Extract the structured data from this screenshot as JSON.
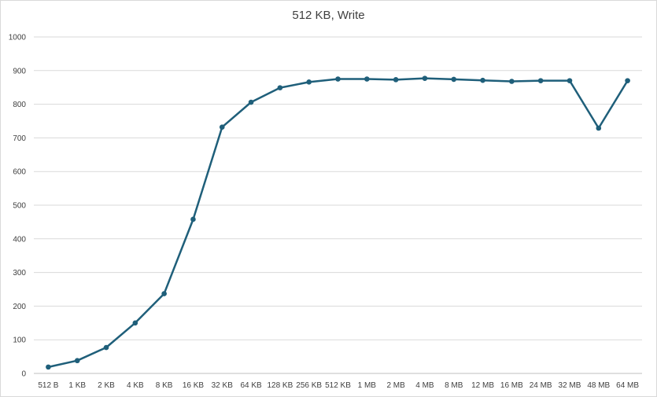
{
  "chart_data": {
    "type": "line",
    "title": "512 KB, Write",
    "xlabel": "",
    "ylabel": "",
    "categories": [
      "512 B",
      "1 KB",
      "2 KB",
      "4 KB",
      "8 KB",
      "16 KB",
      "32 KB",
      "64 KB",
      "128 KB",
      "256 KB",
      "512 KB",
      "1 MB",
      "2 MB",
      "4 MB",
      "8 MB",
      "12 MB",
      "16 MB",
      "24 MB",
      "32 MB",
      "48 MB",
      "64 MB"
    ],
    "series": [
      {
        "values": [
          19,
          38,
          77,
          150,
          237,
          458,
          732,
          806,
          849,
          866,
          875,
          875,
          873,
          877,
          874,
          871,
          868,
          870,
          870,
          729,
          870
        ]
      }
    ],
    "ylim": [
      0,
      1000
    ],
    "yticks": [
      0,
      100,
      200,
      300,
      400,
      500,
      600,
      700,
      800,
      900,
      1000
    ],
    "grid": true,
    "legend": "none",
    "colors": {
      "line": "#1f5f7a",
      "grid": "#d9d9d9",
      "axis": "#bfbfbf",
      "text": "#404040"
    }
  }
}
